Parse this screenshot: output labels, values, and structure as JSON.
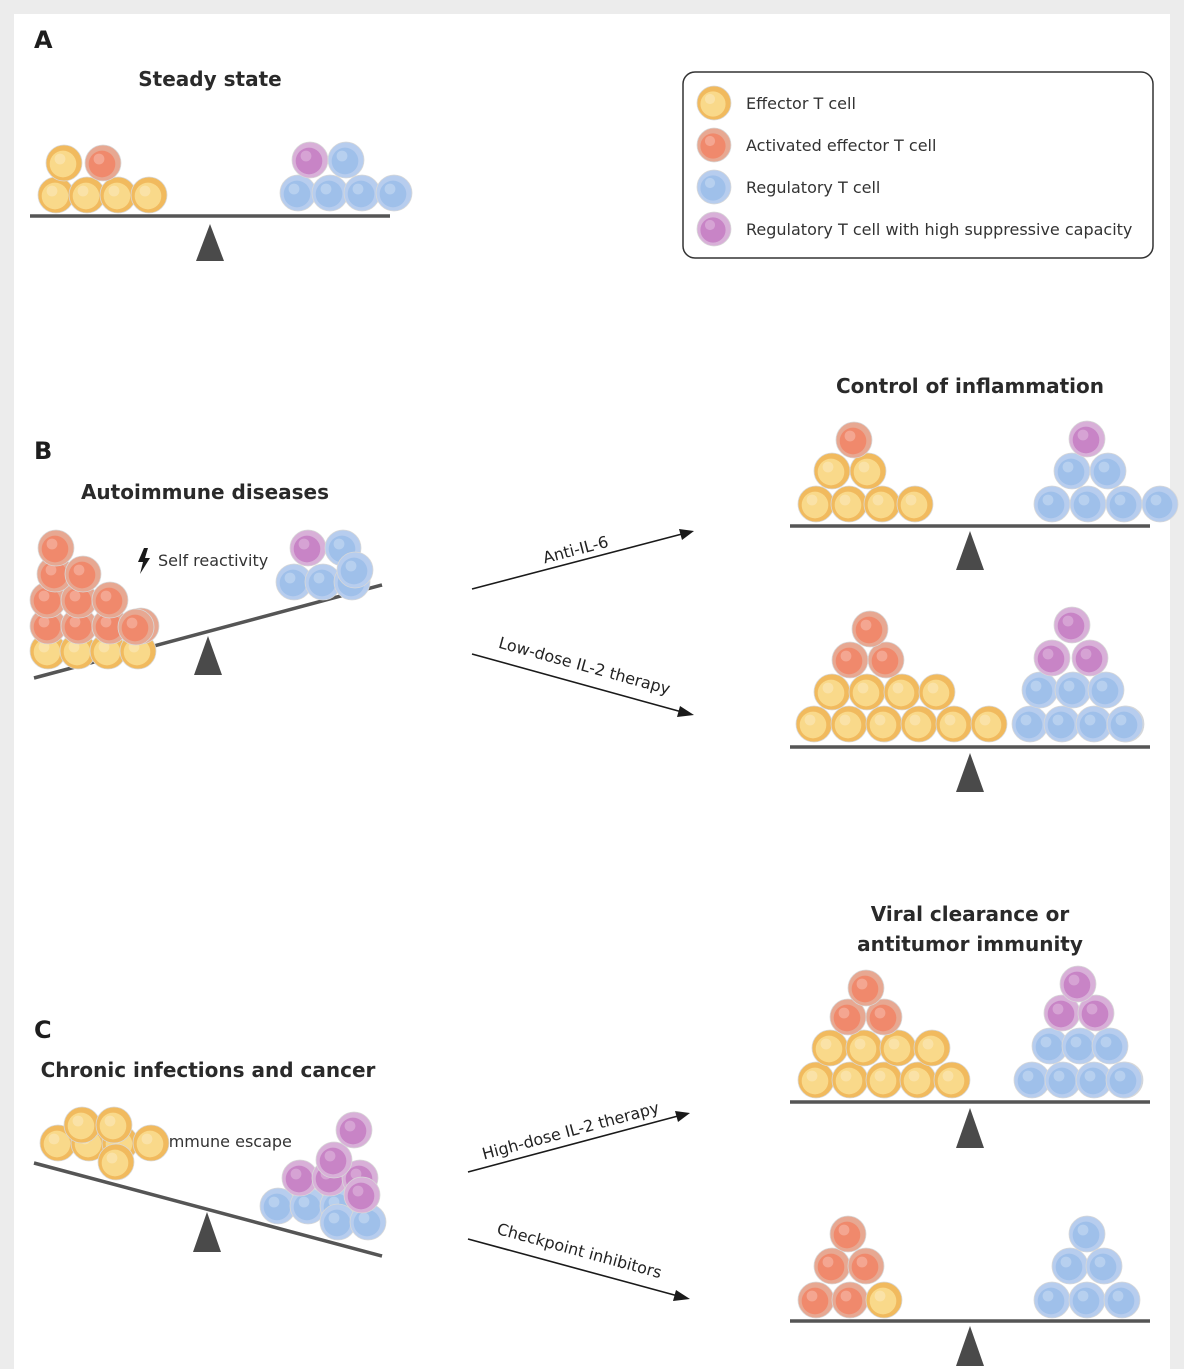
{
  "colors": {
    "background": "#ececec",
    "panel": "#ffffff",
    "beam": "#555555",
    "fulcrum": "#4a4a4a",
    "effector": "#f9d98a",
    "effector_ring": "#f1ba5e",
    "activated": "#f0896c",
    "activated_ring": "#e7a892",
    "regulatory": "#9fc0ea",
    "regulatory_ring": "#b7cdee",
    "suppressive": "#c884c6",
    "suppressive_ring": "#d8b0d8"
  },
  "panels": {
    "a": {
      "letter": "A",
      "title": "Steady state"
    },
    "b": {
      "letter": "B",
      "title": "Autoimmune diseases",
      "trigger": "Self reactivity",
      "outcome": "Control of inflammation"
    },
    "c": {
      "letter": "C",
      "title": "Chronic infections and cancer",
      "trigger": "Immune escape",
      "outcome_line1": "Viral clearance or",
      "outcome_line2": "antitumor immunity"
    }
  },
  "arrows": {
    "b_top": "Anti-IL-6",
    "b_bottom": "Low-dose IL-2 therapy",
    "c_top": "High-dose IL-2 therapy",
    "c_bottom": "Checkpoint inhibitors"
  },
  "legend": {
    "items": [
      {
        "label": "Effector T cell",
        "icon": "effector-cell-icon"
      },
      {
        "label": "Activated effector T cell",
        "icon": "activated-cell-icon"
      },
      {
        "label": "Regulatory T cell",
        "icon": "regulatory-cell-icon"
      },
      {
        "label": "Regulatory T cell with high suppressive capacity",
        "icon": "suppressive-cell-icon"
      }
    ]
  }
}
